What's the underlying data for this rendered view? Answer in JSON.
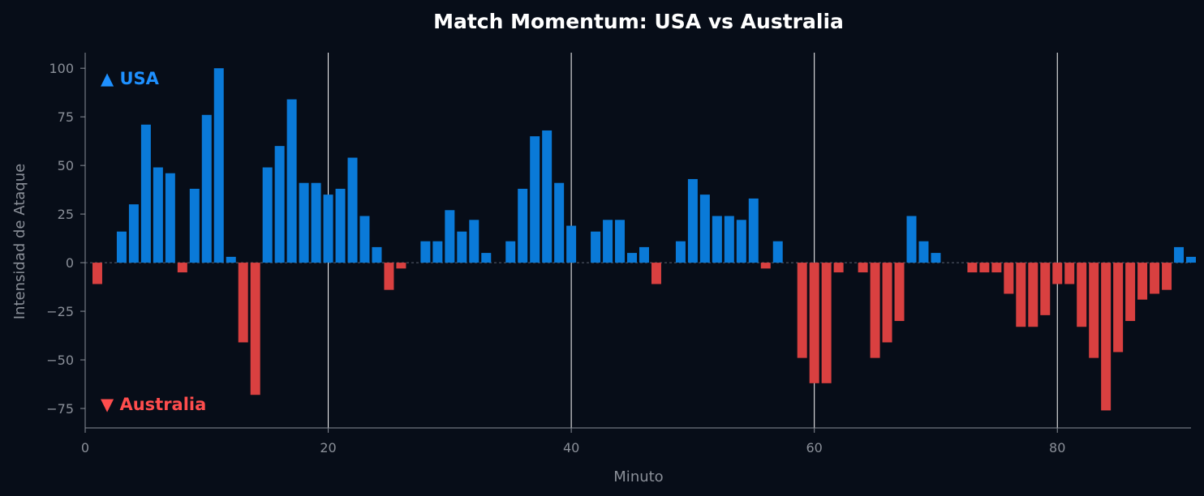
{
  "chart_data": {
    "type": "bar",
    "title": "Match Momentum: USA vs Australia",
    "xlabel": "Minuto",
    "ylabel": "Intensidad de Ataque",
    "xlim": [
      0,
      91
    ],
    "ylim": [
      -85,
      108
    ],
    "xticks": [
      0,
      20,
      40,
      60,
      80
    ],
    "yticks": [
      -75,
      -50,
      -25,
      0,
      25,
      50,
      75,
      100
    ],
    "vertical_markers": [
      20,
      40,
      60,
      80
    ],
    "grid": false,
    "legend_placement": "left",
    "series": [
      {
        "name": "▲ USA",
        "color": "#0a7ad8",
        "label_color": "#1e90ff",
        "sign": "positive"
      },
      {
        "name": "▼ Australia",
        "color": "#d94040",
        "label_color": "#ff4d4d",
        "sign": "negative"
      }
    ],
    "x": [
      1,
      2,
      3,
      4,
      5,
      6,
      7,
      8,
      9,
      10,
      11,
      12,
      13,
      14,
      15,
      16,
      17,
      18,
      19,
      20,
      21,
      22,
      23,
      24,
      25,
      26,
      27,
      28,
      29,
      30,
      31,
      32,
      33,
      34,
      35,
      36,
      37,
      38,
      39,
      40,
      41,
      42,
      43,
      44,
      45,
      46,
      47,
      48,
      49,
      50,
      51,
      52,
      53,
      54,
      55,
      56,
      57,
      58,
      59,
      60,
      61,
      62,
      63,
      64,
      65,
      66,
      67,
      68,
      69,
      70,
      71,
      72,
      73,
      74,
      75,
      76,
      77,
      78,
      79,
      80,
      81,
      82,
      83,
      84,
      85,
      86,
      87,
      88,
      89,
      90,
      91
    ],
    "values": [
      -11,
      0,
      16,
      30,
      71,
      49,
      46,
      -5,
      38,
      76,
      100,
      3,
      -41,
      -68,
      49,
      60,
      84,
      41,
      41,
      35,
      38,
      54,
      24,
      8,
      -14,
      -3,
      0,
      11,
      11,
      27,
      16,
      22,
      5,
      0,
      11,
      38,
      65,
      68,
      41,
      19,
      0,
      16,
      22,
      22,
      5,
      8,
      -11,
      0,
      11,
      43,
      35,
      24,
      24,
      22,
      33,
      -3,
      11,
      0,
      -49,
      -62,
      -62,
      -5,
      0,
      -5,
      -49,
      -41,
      -30,
      24,
      11,
      5,
      0,
      0,
      -5,
      -5,
      -5,
      -16,
      -33,
      -33,
      -27,
      -11,
      -11,
      -33,
      -49,
      -76,
      -46,
      -30,
      -19,
      -16,
      -14,
      8,
      3
    ]
  }
}
